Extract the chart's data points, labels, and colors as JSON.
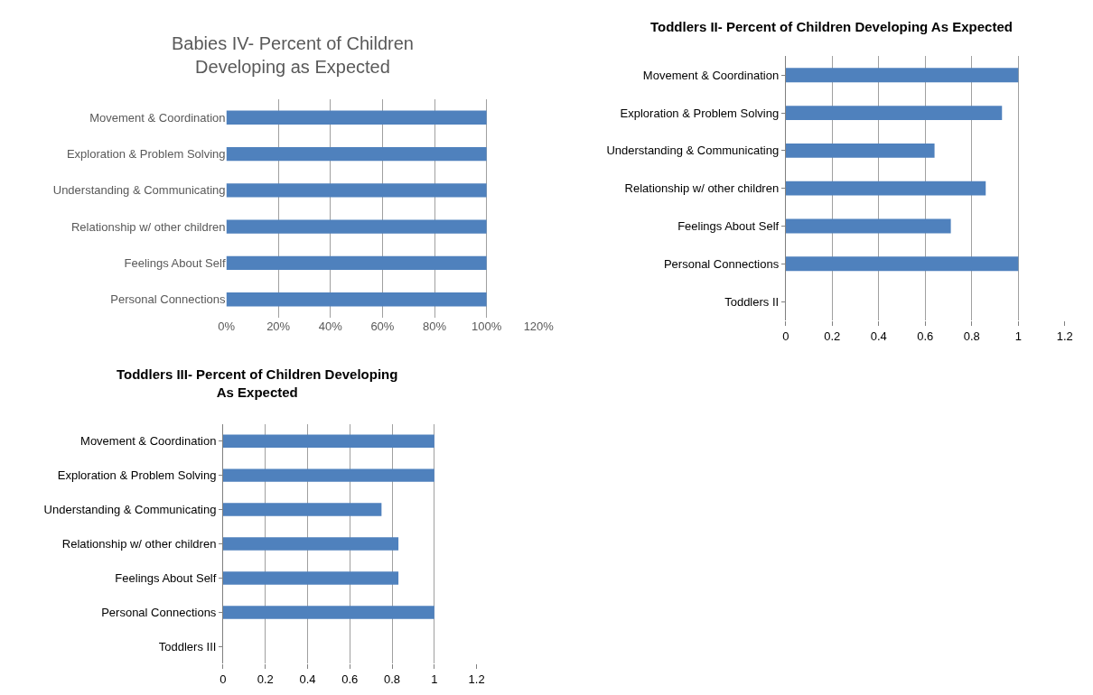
{
  "chart_data": [
    {
      "type": "bar",
      "orientation": "horizontal",
      "title": "Babies IV- Percent of Children Developing as Expected",
      "categories": [
        "Movement & Coordination",
        "Exploration & Problem Solving",
        "Understanding & Communicating",
        "Relationship w/ other children",
        "Feelings About Self",
        "Personal Connections"
      ],
      "values": [
        100,
        100,
        100,
        100,
        100,
        100
      ],
      "color": "#4f81bd",
      "xlim": [
        0,
        120
      ],
      "xticks": [
        {
          "value": 0,
          "label": "0%"
        },
        {
          "value": 20,
          "label": "20%"
        },
        {
          "value": 40,
          "label": "40%"
        },
        {
          "value": 60,
          "label": "60%"
        },
        {
          "value": 80,
          "label": "80%"
        },
        {
          "value": 100,
          "label": "100%"
        },
        {
          "value": 120,
          "label": "120%"
        }
      ],
      "grid": "x"
    },
    {
      "type": "bar",
      "orientation": "horizontal",
      "title": "Toddlers II- Percent of Children Developing As Expected",
      "categories": [
        "Movement & Coordination",
        "Exploration & Problem Solving",
        "Understanding & Communicating",
        "Relationship w/ other children",
        "Feelings About Self",
        "Personal Connections",
        "Toddlers II"
      ],
      "values": [
        1,
        0.93,
        0.64,
        0.86,
        0.71,
        1,
        null
      ],
      "color": "#4f81bd",
      "xlim": [
        0,
        1.2
      ],
      "xticks": [
        0,
        0.2,
        0.4,
        0.6,
        0.8,
        1,
        1.2
      ],
      "grid": "x"
    },
    {
      "type": "bar",
      "orientation": "horizontal",
      "title": "Toddlers III- Percent of Children Developing As Expected",
      "categories": [
        "Movement & Coordination",
        "Exploration & Problem Solving",
        "Understanding & Communicating",
        "Relationship w/ other children",
        "Feelings About Self",
        "Personal Connections",
        "Toddlers III"
      ],
      "values": [
        1,
        1,
        0.75,
        0.83,
        0.83,
        1,
        null
      ],
      "color": "#4f81bd",
      "xlim": [
        0,
        1.2
      ],
      "xticks": [
        0,
        0.2,
        0.4,
        0.6,
        0.8,
        1,
        1.2
      ],
      "grid": "x"
    }
  ]
}
